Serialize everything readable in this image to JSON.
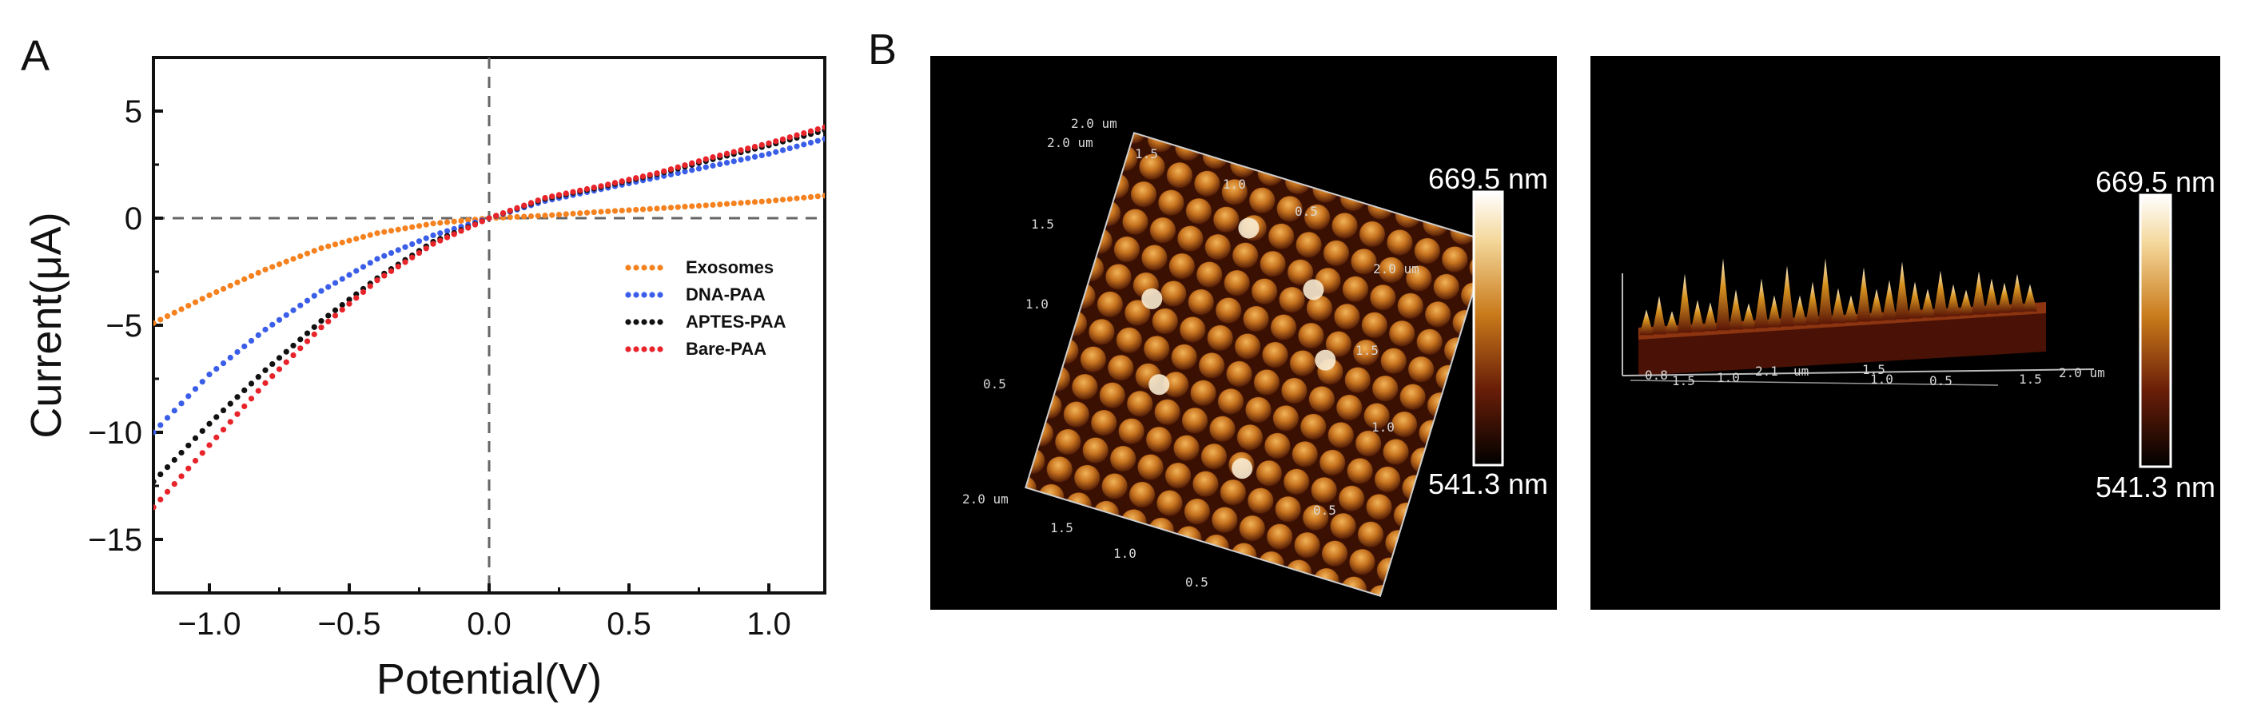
{
  "panels": {
    "a_label": "A",
    "b_label": "B"
  },
  "chart_data": {
    "type": "scatter",
    "title": "",
    "xlabel": "Potential(V)",
    "ylabel": "Current(μA)",
    "xlim": [
      -1.2,
      1.2
    ],
    "ylim": [
      -17.5,
      7.5
    ],
    "xticks": [
      -1.0,
      -0.5,
      0.0,
      0.5,
      1.0
    ],
    "xtick_labels": [
      "−1.0",
      "−0.5",
      "0.0",
      "0.5",
      "1.0"
    ],
    "yticks": [
      5,
      0,
      -5,
      -10,
      -15
    ],
    "ytick_labels": [
      "5",
      "0",
      "−5",
      "−10",
      "−15"
    ],
    "reference_lines": {
      "x": 0,
      "y": 0,
      "style": "dashed"
    },
    "legend_position": "center-right",
    "series": [
      {
        "name": "Exosomes",
        "color": "#f5821f",
        "x": [
          -1.2,
          -1.0,
          -0.8,
          -0.6,
          -0.4,
          -0.2,
          0.0,
          0.2,
          0.4,
          0.6,
          0.8,
          1.0,
          1.2
        ],
        "y": [
          -4.9,
          -3.6,
          -2.4,
          -1.4,
          -0.7,
          -0.25,
          0.0,
          0.12,
          0.3,
          0.45,
          0.62,
          0.8,
          1.05
        ]
      },
      {
        "name": "DNA-PAA",
        "color": "#3b5ee8",
        "x": [
          -1.2,
          -1.0,
          -0.8,
          -0.6,
          -0.4,
          -0.2,
          0.0,
          0.2,
          0.4,
          0.6,
          0.8,
          1.0,
          1.2
        ],
        "y": [
          -10.0,
          -7.3,
          -5.2,
          -3.4,
          -1.9,
          -0.8,
          0.0,
          0.8,
          1.35,
          1.9,
          2.45,
          3.0,
          3.7
        ]
      },
      {
        "name": "APTES-PAA",
        "color": "#111111",
        "x": [
          -1.2,
          -1.0,
          -0.8,
          -0.6,
          -0.4,
          -0.2,
          0.0,
          0.2,
          0.4,
          0.6,
          0.8,
          1.0,
          1.2
        ],
        "y": [
          -12.3,
          -9.6,
          -7.1,
          -4.8,
          -2.8,
          -1.1,
          0.0,
          0.9,
          1.45,
          2.05,
          2.75,
          3.4,
          4.1
        ]
      },
      {
        "name": "Bare-PAA",
        "color": "#e8242b",
        "x": [
          -1.2,
          -1.0,
          -0.8,
          -0.6,
          -0.4,
          -0.2,
          0.0,
          0.2,
          0.4,
          0.6,
          0.8,
          1.0,
          1.2
        ],
        "y": [
          -13.5,
          -10.6,
          -7.7,
          -5.1,
          -2.9,
          -1.2,
          0.0,
          0.95,
          1.5,
          2.1,
          2.85,
          3.5,
          4.25
        ]
      }
    ]
  },
  "afm": {
    "left_axis_labels": [
      "2.0 um",
      "2.0 um",
      "1.5",
      "1.0",
      "0.5",
      "2.0 um",
      "1.5",
      "1.0",
      "0.5",
      "1.5",
      "1.0",
      "0.5",
      "2.0 um",
      "1.5",
      "1.0",
      "0.5"
    ],
    "right_axis_labels": [
      "0.8",
      "1.5",
      "1.0",
      "2.1",
      "um",
      "1.5",
      "1.0",
      "0.5",
      "1.5",
      "2.0 um"
    ],
    "colorbar_max": "669.5 nm",
    "colorbar_min": "541.3 nm"
  }
}
